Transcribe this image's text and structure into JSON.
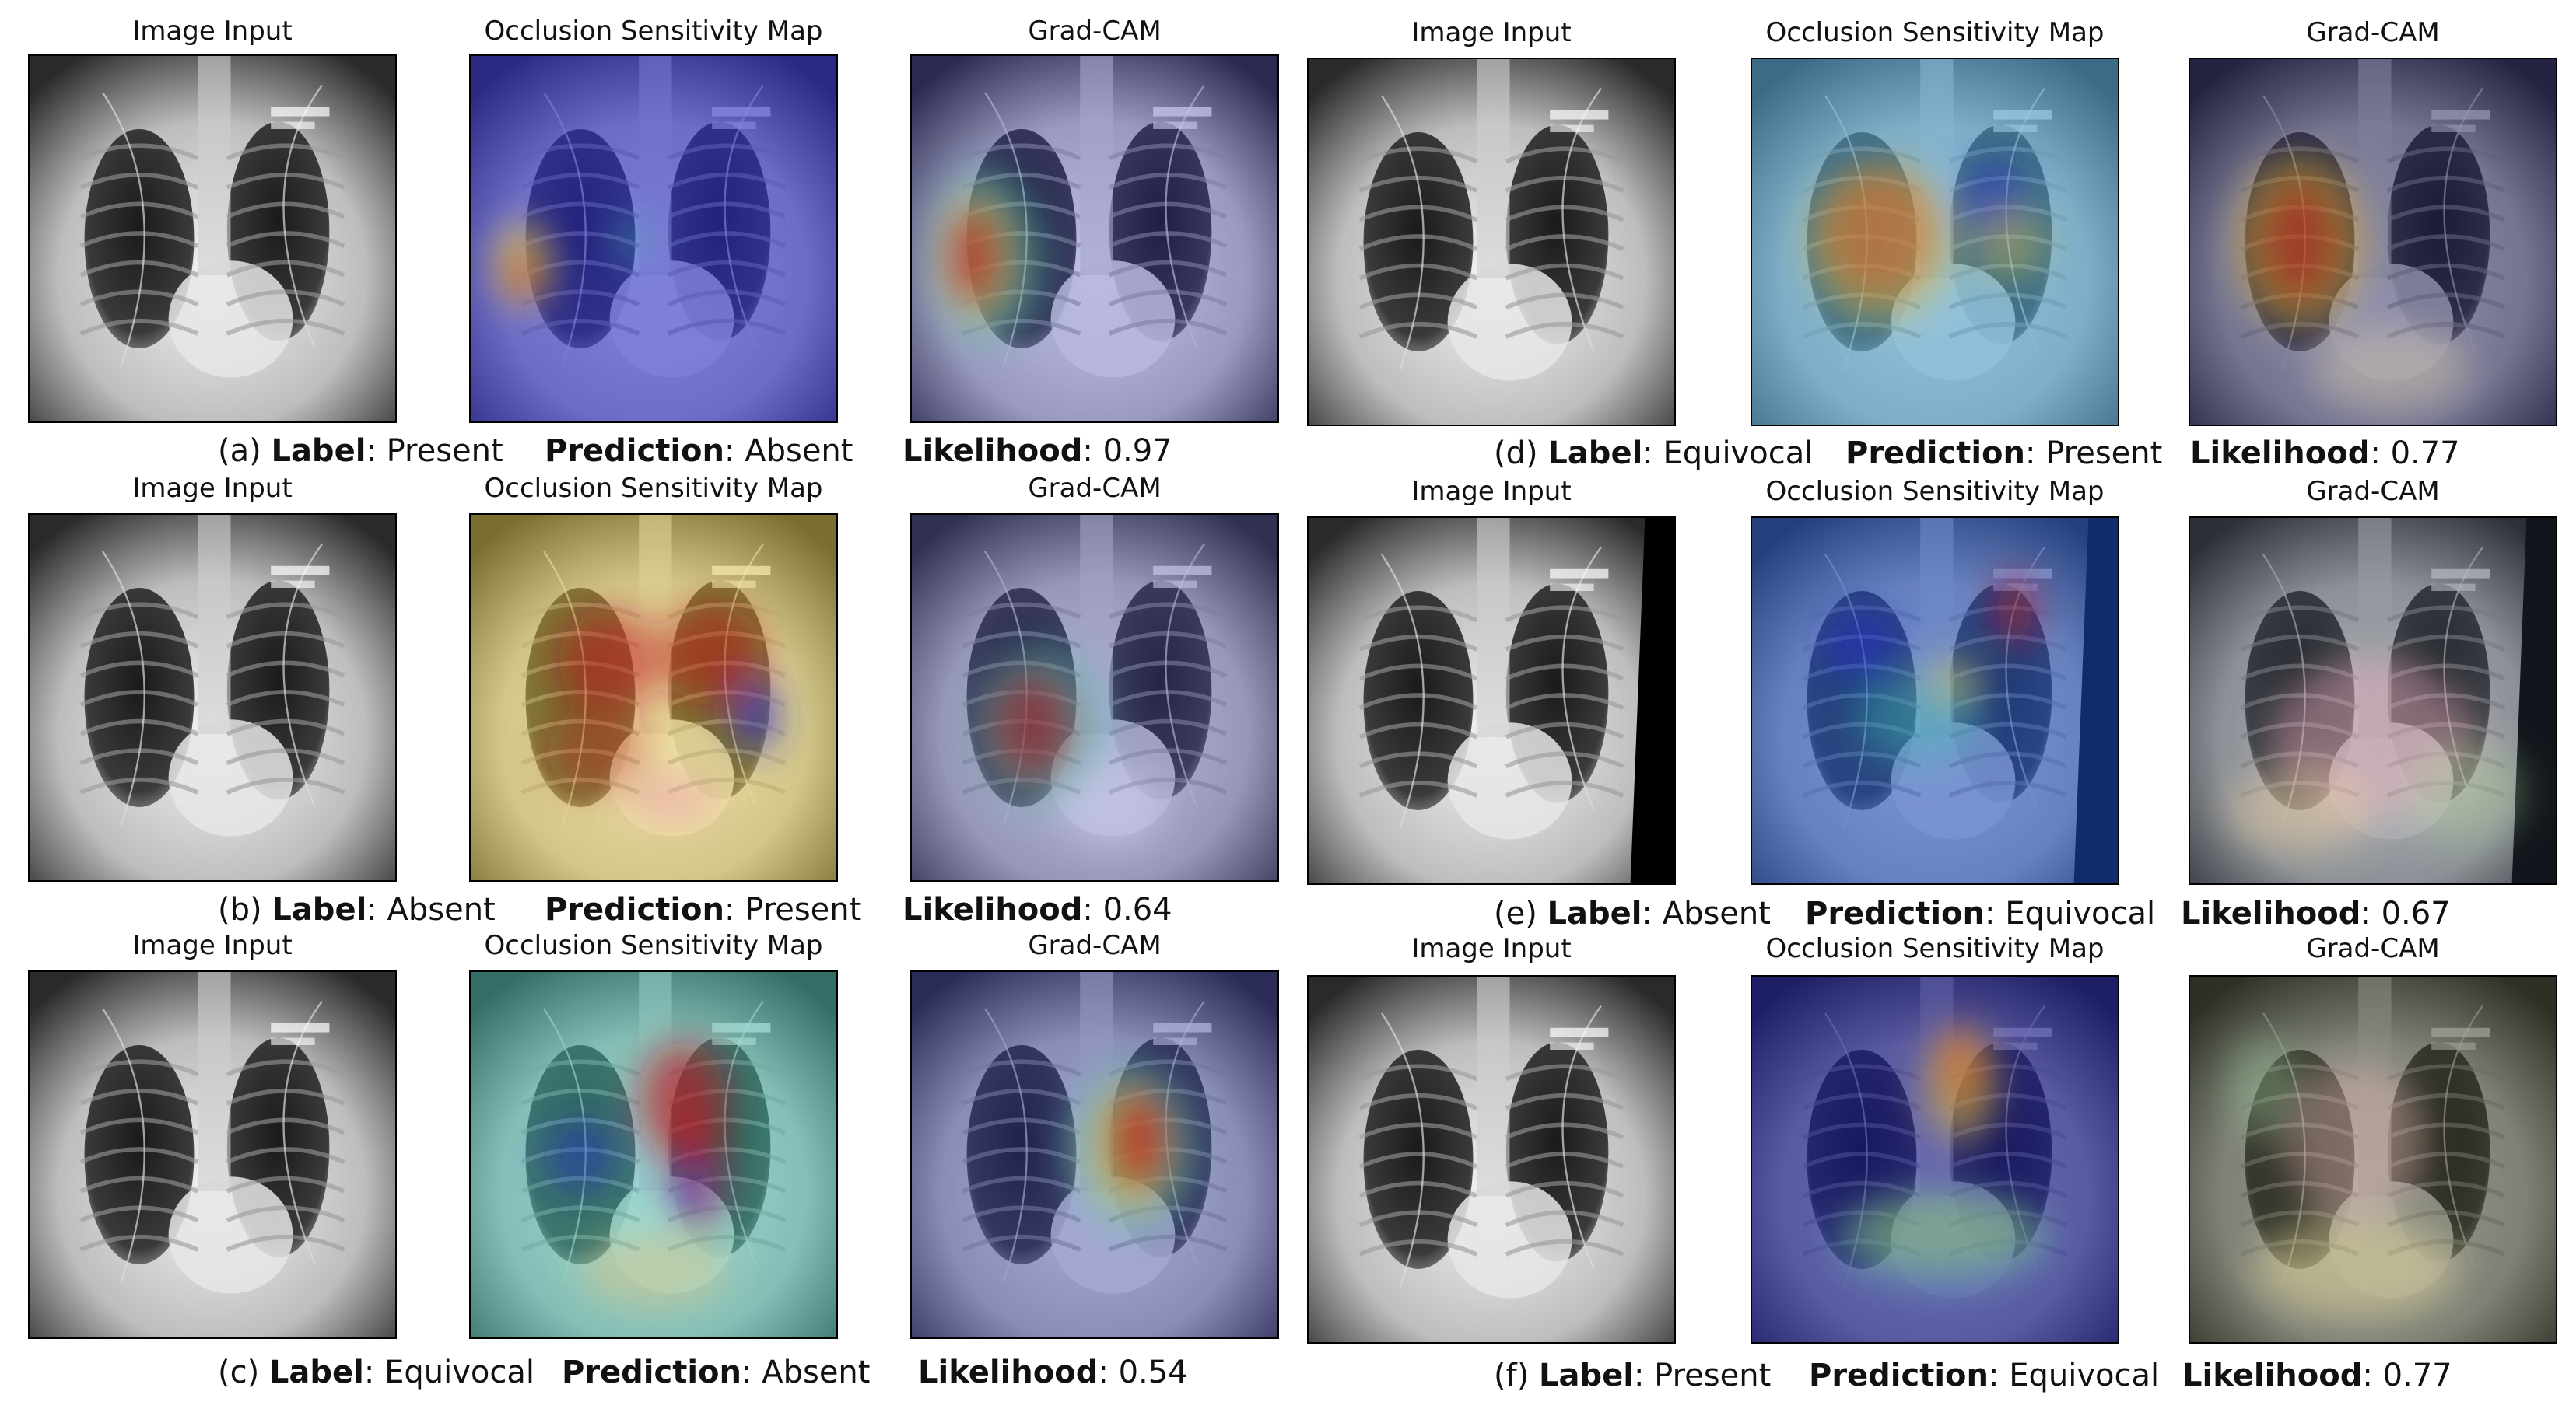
{
  "panels": [
    {
      "id": "a",
      "titles": [
        "Image Input",
        "Occlusion Sensitivity Map",
        "Grad-CAM"
      ],
      "caption": {
        "letter": "(a)",
        "label_key": "Label",
        "label": "Present",
        "prediction_key": "Prediction",
        "prediction": "Absent",
        "likelihood_key": "Likelihood",
        "likelihood": "0.97"
      }
    },
    {
      "id": "b",
      "titles": [
        "Image Input",
        "Occlusion Sensitivity Map",
        "Grad-CAM"
      ],
      "caption": {
        "letter": "(b)",
        "label_key": "Label",
        "label": "Absent",
        "prediction_key": "Prediction",
        "prediction": "Present",
        "likelihood_key": "Likelihood",
        "likelihood": "0.64"
      }
    },
    {
      "id": "c",
      "titles": [
        "Image Input",
        "Occlusion Sensitivity Map",
        "Grad-CAM"
      ],
      "caption": {
        "letter": "(c)",
        "label_key": "Label",
        "label": "Equivocal",
        "prediction_key": "Prediction",
        "prediction": "Absent",
        "likelihood_key": "Likelihood",
        "likelihood": "0.54"
      }
    },
    {
      "id": "d",
      "titles": [
        "Image Input",
        "Occlusion Sensitivity Map",
        "Grad-CAM"
      ],
      "caption": {
        "letter": "(d)",
        "label_key": "Label",
        "label": "Equivocal",
        "prediction_key": "Prediction",
        "prediction": "Present",
        "likelihood_key": "Likelihood",
        "likelihood": "0.77"
      }
    },
    {
      "id": "e",
      "titles": [
        "Image Input",
        "Occlusion Sensitivity Map",
        "Grad-CAM"
      ],
      "caption": {
        "letter": "(e)",
        "label_key": "Label",
        "label": "Absent",
        "prediction_key": "Prediction",
        "prediction": "Equivocal",
        "likelihood_key": "Likelihood",
        "likelihood": "0.67"
      }
    },
    {
      "id": "f",
      "titles": [
        "Image Input",
        "Occlusion Sensitivity Map",
        "Grad-CAM"
      ],
      "caption": {
        "letter": "(f)",
        "label_key": "Label",
        "label": "Present",
        "prediction_key": "Prediction",
        "prediction": "Equivocal",
        "likelihood_key": "Likelihood",
        "likelihood": "0.77"
      }
    }
  ],
  "colors": {
    "xray_dark": "#0a0a0a",
    "xray_light": "#e8e8e8",
    "heat_hot": "#c0141c",
    "heat_warm": "#f0d23a",
    "heat_mid": "#3fc0b0",
    "heat_cool": "#2a2ad0"
  }
}
